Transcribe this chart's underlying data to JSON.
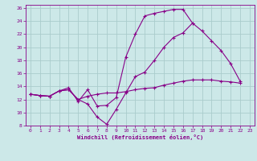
{
  "xlabel": "Windchill (Refroidissement éolien,°C)",
  "bg_color": "#cce8e8",
  "grid_color": "#aacccc",
  "line_color": "#880088",
  "xlim": [
    -0.5,
    23.5
  ],
  "ylim": [
    8,
    26.5
  ],
  "yticks": [
    8,
    10,
    12,
    14,
    16,
    18,
    20,
    22,
    24,
    26
  ],
  "xticks": [
    0,
    1,
    2,
    3,
    4,
    5,
    6,
    7,
    8,
    9,
    10,
    11,
    12,
    13,
    14,
    15,
    16,
    17,
    18,
    19,
    20,
    21,
    22,
    23
  ],
  "series": [
    [
      12.8,
      12.6,
      12.5,
      13.3,
      13.8,
      11.7,
      13.5,
      11.0,
      11.1,
      12.3,
      18.5,
      22.0,
      24.8,
      25.2,
      25.5,
      25.8,
      25.8,
      23.7,
      null,
      null,
      null,
      null,
      null,
      null
    ],
    [
      12.8,
      12.6,
      12.5,
      13.3,
      13.5,
      12.0,
      11.3,
      9.3,
      8.2,
      10.5,
      13.0,
      15.5,
      16.2,
      18.0,
      20.0,
      21.5,
      22.2,
      23.7,
      22.5,
      21.0,
      19.5,
      17.5,
      14.8,
      null
    ],
    [
      12.8,
      12.6,
      12.5,
      13.3,
      13.5,
      12.0,
      12.5,
      12.8,
      13.0,
      13.0,
      13.2,
      13.5,
      13.7,
      13.8,
      14.2,
      14.5,
      14.8,
      15.0,
      15.0,
      15.0,
      14.8,
      14.7,
      14.5,
      null
    ]
  ]
}
